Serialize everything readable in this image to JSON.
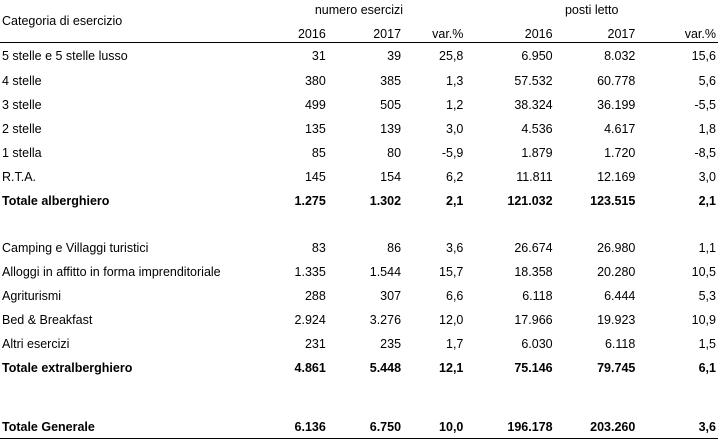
{
  "header": {
    "category_label": "Categoria di esercizio",
    "group_establishments": "numero esercizi",
    "group_beds": "posti letto",
    "columns": [
      "2016",
      "2017",
      "var.%",
      "2016",
      "2017",
      "var.%"
    ]
  },
  "hotel_rows": [
    {
      "label": "5 stelle e 5 stelle lusso",
      "values": [
        "31",
        "39",
        "25,8",
        "6.950",
        "8.032",
        "15,6"
      ]
    },
    {
      "label": "4 stelle",
      "values": [
        "380",
        "385",
        "1,3",
        "57.532",
        "60.778",
        "5,6"
      ]
    },
    {
      "label": "3 stelle",
      "values": [
        "499",
        "505",
        "1,2",
        "38.324",
        "36.199",
        "-5,5"
      ]
    },
    {
      "label": "2 stelle",
      "values": [
        "135",
        "139",
        "3,0",
        "4.536",
        "4.617",
        "1,8"
      ]
    },
    {
      "label": "1 stella",
      "values": [
        "85",
        "80",
        "-5,9",
        "1.879",
        "1.720",
        "-8,5"
      ]
    },
    {
      "label": "R.T.A.",
      "values": [
        "145",
        "154",
        "6,2",
        "11.811",
        "12.169",
        "3,0"
      ]
    }
  ],
  "hotel_total": {
    "label": "Totale alberghiero",
    "values": [
      "1.275",
      "1.302",
      "2,1",
      "121.032",
      "123.515",
      "2,1"
    ]
  },
  "extra_rows": [
    {
      "label": "Camping e Villaggi turistici",
      "values": [
        "83",
        "86",
        "3,6",
        "26.674",
        "26.980",
        "1,1"
      ]
    },
    {
      "label": "Alloggi in affitto in forma imprenditoriale",
      "values": [
        "1.335",
        "1.544",
        "15,7",
        "18.358",
        "20.280",
        "10,5"
      ]
    },
    {
      "label": "Agriturismi",
      "values": [
        "288",
        "307",
        "6,6",
        "6.118",
        "6.444",
        "5,3"
      ]
    },
    {
      "label": "Bed & Breakfast",
      "values": [
        "2.924",
        "3.276",
        "12,0",
        "17.966",
        "19.923",
        "10,9"
      ]
    },
    {
      "label": "Altri esercizi",
      "values": [
        "231",
        "235",
        "1,7",
        "6.030",
        "6.118",
        "1,5"
      ]
    }
  ],
  "extra_total": {
    "label": "Totale extralberghiero",
    "values": [
      "4.861",
      "5.448",
      "12,1",
      "75.146",
      "79.745",
      "6,1"
    ]
  },
  "grand_total": {
    "label": "Totale Generale",
    "values": [
      "6.136",
      "6.750",
      "10,0",
      "196.178",
      "203.260",
      "3,6"
    ]
  }
}
